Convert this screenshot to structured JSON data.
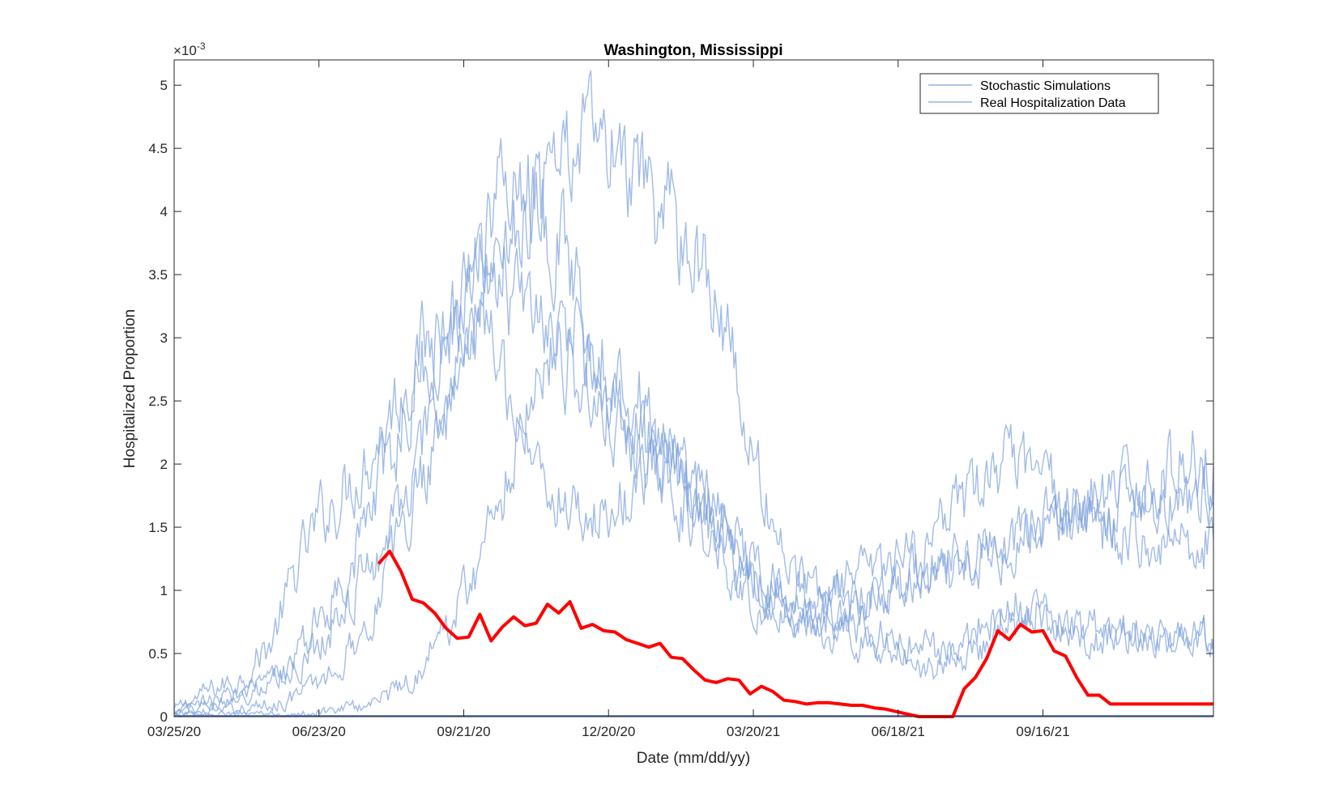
{
  "chart_data": {
    "type": "line",
    "title": "Washington, Mississippi",
    "xlabel": "Date (mm/dd/yy)",
    "ylabel": "Hospitalized Proportion",
    "y_exponent_label": "×10",
    "y_exponent_power": "-3",
    "x_start_date": "2020-03-25",
    "x_end_date": "2021-12-31",
    "xticks": [
      "03/25/20",
      "06/23/20",
      "09/21/20",
      "12/20/20",
      "03/20/21",
      "06/18/21",
      "09/16/21"
    ],
    "ylim": [
      0,
      5.2
    ],
    "yticks": [
      "0",
      "0.5",
      "1",
      "1.5",
      "2",
      "2.5",
      "3",
      "3.5",
      "4",
      "4.5",
      "5"
    ],
    "grid": false,
    "legend_position": "top-right",
    "legend": [
      "Stochastic Simulations",
      "Real Hospitalization Data"
    ],
    "colors": {
      "simulation": "#7a9fdc",
      "real": "#ff0000",
      "axis": "#262626",
      "baseline": "#3a64b0"
    },
    "simulations": [
      {
        "x": [
          "2020-03-25",
          "2020-04-15",
          "2020-05-05",
          "2020-05-25",
          "2020-06-10",
          "2020-06-25",
          "2020-07-10",
          "2020-07-25",
          "2020-08-10",
          "2020-08-25",
          "2020-09-10",
          "2020-09-25",
          "2020-10-10",
          "2020-10-25",
          "2020-11-05",
          "2020-11-20",
          "2020-12-05",
          "2020-12-20",
          "2021-01-05",
          "2021-01-20",
          "2021-02-05",
          "2021-02-20",
          "2021-03-05",
          "2021-03-20",
          "2021-04-05",
          "2021-04-20",
          "2021-05-10",
          "2021-05-30",
          "2021-06-18",
          "2021-07-10",
          "2021-07-30",
          "2021-08-20",
          "2021-09-10",
          "2021-09-30",
          "2021-10-20",
          "2021-11-10",
          "2021-11-30",
          "2021-12-20",
          "2021-12-31"
        ],
        "y": [
          0.05,
          0.2,
          0.3,
          0.6,
          1.2,
          1.6,
          1.8,
          2.1,
          2.5,
          2.9,
          3.1,
          3.3,
          3.4,
          3.3,
          3.1,
          2.9,
          2.6,
          2.3,
          2.1,
          1.9,
          1.7,
          1.5,
          1.3,
          1.1,
          0.95,
          0.9,
          0.9,
          0.95,
          1.0,
          1.05,
          1.1,
          1.3,
          1.5,
          1.6,
          1.7,
          1.8,
          1.9,
          2.1,
          2.0
        ]
      },
      {
        "x": [
          "2020-03-25",
          "2020-04-20",
          "2020-05-15",
          "2020-06-05",
          "2020-06-25",
          "2020-07-15",
          "2020-08-05",
          "2020-08-25",
          "2020-09-15",
          "2020-10-01",
          "2020-10-15",
          "2020-10-30",
          "2020-11-10",
          "2020-11-25",
          "2020-12-10",
          "2020-12-25",
          "2021-01-10",
          "2021-01-25",
          "2021-02-10",
          "2021-02-25",
          "2021-03-10",
          "2021-03-25",
          "2021-04-15",
          "2021-05-05",
          "2021-05-25",
          "2021-06-18",
          "2021-07-10",
          "2021-08-01",
          "2021-08-20",
          "2021-09-10",
          "2021-09-30",
          "2021-10-20",
          "2021-11-10",
          "2021-12-01",
          "2021-12-31"
        ],
        "y": [
          0.02,
          0.1,
          0.2,
          0.4,
          0.8,
          1.3,
          2.0,
          2.7,
          3.2,
          3.8,
          4.2,
          4.3,
          4.0,
          3.6,
          3.1,
          2.7,
          2.5,
          2.1,
          1.8,
          1.6,
          1.4,
          1.1,
          1.0,
          1.0,
          1.1,
          1.2,
          1.4,
          1.7,
          2.0,
          1.9,
          1.7,
          1.5,
          1.4,
          1.4,
          1.4
        ]
      },
      {
        "x": [
          "2020-03-25",
          "2020-04-30",
          "2020-05-25",
          "2020-06-15",
          "2020-07-05",
          "2020-07-25",
          "2020-08-15",
          "2020-09-05",
          "2020-09-25",
          "2020-10-10",
          "2020-10-25",
          "2020-11-10",
          "2020-11-25",
          "2020-12-10",
          "2020-12-25",
          "2021-01-10",
          "2021-01-25",
          "2021-02-10",
          "2021-02-25",
          "2021-03-10",
          "2021-03-25",
          "2021-04-15",
          "2021-05-05",
          "2021-05-25",
          "2021-06-18",
          "2021-07-10",
          "2021-08-01",
          "2021-08-20",
          "2021-09-10",
          "2021-09-30",
          "2021-10-20",
          "2021-11-10",
          "2021-12-01",
          "2021-12-31"
        ],
        "y": [
          0.02,
          0.05,
          0.1,
          0.2,
          0.4,
          0.8,
          1.5,
          2.3,
          3.0,
          3.6,
          3.9,
          4.3,
          4.5,
          4.6,
          4.4,
          4.1,
          4.0,
          3.7,
          3.4,
          2.6,
          1.8,
          1.1,
          0.8,
          0.7,
          0.6,
          0.5,
          0.5,
          0.7,
          0.8,
          0.7,
          0.6,
          0.6,
          0.6,
          0.6
        ]
      },
      {
        "x": [
          "2020-03-25",
          "2020-05-01",
          "2020-06-01",
          "2020-07-01",
          "2020-07-25",
          "2020-08-20",
          "2020-09-10",
          "2020-09-30",
          "2020-10-15",
          "2020-10-30",
          "2020-11-10",
          "2020-11-25",
          "2020-12-10",
          "2020-12-25",
          "2021-01-10",
          "2021-01-25",
          "2021-02-10",
          "2021-02-25",
          "2021-03-10",
          "2021-03-25",
          "2021-04-15",
          "2021-05-05",
          "2021-05-25",
          "2021-06-18",
          "2021-07-10",
          "2021-07-25",
          "2021-08-15",
          "2021-09-05",
          "2021-09-25",
          "2021-10-15",
          "2021-11-05",
          "2021-11-25",
          "2021-12-15",
          "2021-12-31"
        ],
        "y": [
          0.01,
          0.02,
          0.02,
          0.05,
          0.1,
          0.3,
          0.7,
          1.2,
          1.8,
          2.5,
          2.9,
          3.1,
          2.8,
          2.4,
          2.2,
          2.0,
          1.8,
          1.6,
          1.3,
          1.1,
          0.9,
          0.8,
          0.6,
          0.5,
          0.4,
          0.6,
          0.8,
          0.9,
          0.8,
          0.7,
          0.7,
          0.6,
          0.6,
          0.6
        ]
      },
      {
        "x": [
          "2020-03-25",
          "2020-04-25",
          "2020-05-20",
          "2020-06-10",
          "2020-06-30",
          "2020-07-20",
          "2020-08-10",
          "2020-08-30",
          "2020-09-20",
          "2020-10-05",
          "2020-10-20",
          "2020-11-05",
          "2020-11-20",
          "2020-12-05",
          "2020-12-20",
          "2021-01-05",
          "2021-01-20",
          "2021-02-05",
          "2021-02-20",
          "2021-03-05",
          "2021-03-20",
          "2021-04-10",
          "2021-05-01",
          "2021-05-25",
          "2021-06-18",
          "2021-07-10",
          "2021-08-01",
          "2021-08-25",
          "2021-09-15",
          "2021-10-05",
          "2021-10-25",
          "2021-11-15",
          "2021-12-05",
          "2021-12-31"
        ],
        "y": [
          0.03,
          0.15,
          0.25,
          0.4,
          0.7,
          1.1,
          1.6,
          2.2,
          2.8,
          3.1,
          2.6,
          2.0,
          1.7,
          1.6,
          1.6,
          1.8,
          2.1,
          1.9,
          1.5,
          1.2,
          0.9,
          0.8,
          0.7,
          0.8,
          1.0,
          1.2,
          1.3,
          1.4,
          1.5,
          1.5,
          1.6,
          1.7,
          1.8,
          1.7
        ]
      }
    ],
    "real": {
      "x": [
        "2020-07-30",
        "2020-08-06",
        "2020-08-13",
        "2020-08-20",
        "2020-08-27",
        "2020-09-03",
        "2020-09-10",
        "2020-09-17",
        "2020-09-24",
        "2020-10-01",
        "2020-10-08",
        "2020-10-15",
        "2020-10-22",
        "2020-10-29",
        "2020-11-05",
        "2020-11-12",
        "2020-11-19",
        "2020-11-26",
        "2020-12-03",
        "2020-12-10",
        "2020-12-17",
        "2020-12-24",
        "2020-12-31",
        "2021-01-07",
        "2021-01-14",
        "2021-01-21",
        "2021-01-28",
        "2021-02-04",
        "2021-02-11",
        "2021-02-18",
        "2021-02-25",
        "2021-03-04",
        "2021-03-11",
        "2021-03-18",
        "2021-03-25",
        "2021-04-01",
        "2021-04-08",
        "2021-04-15",
        "2021-04-22",
        "2021-04-29",
        "2021-05-06",
        "2021-05-13",
        "2021-05-20",
        "2021-05-27",
        "2021-06-03",
        "2021-06-10",
        "2021-06-17",
        "2021-06-24",
        "2021-07-01",
        "2021-07-08",
        "2021-07-15",
        "2021-07-22",
        "2021-07-29",
        "2021-08-05",
        "2021-08-12",
        "2021-08-19",
        "2021-08-26",
        "2021-09-02",
        "2021-09-09",
        "2021-09-16",
        "2021-09-23",
        "2021-09-30",
        "2021-10-07",
        "2021-10-14",
        "2021-10-21",
        "2021-10-28",
        "2021-11-04",
        "2021-11-11",
        "2021-11-18",
        "2021-11-25",
        "2021-12-02",
        "2021-12-09",
        "2021-12-16",
        "2021-12-31"
      ],
      "y": [
        1.21,
        1.31,
        1.15,
        0.93,
        0.9,
        0.82,
        0.7,
        0.62,
        0.63,
        0.81,
        0.6,
        0.71,
        0.79,
        0.72,
        0.74,
        0.89,
        0.82,
        0.91,
        0.7,
        0.73,
        0.68,
        0.67,
        0.61,
        0.58,
        0.55,
        0.58,
        0.47,
        0.46,
        0.37,
        0.29,
        0.27,
        0.3,
        0.29,
        0.18,
        0.24,
        0.2,
        0.13,
        0.12,
        0.1,
        0.11,
        0.11,
        0.1,
        0.09,
        0.09,
        0.07,
        0.06,
        0.04,
        0.02,
        0.0,
        0.0,
        0.0,
        0.0,
        0.22,
        0.31,
        0.46,
        0.68,
        0.61,
        0.73,
        0.67,
        0.68,
        0.52,
        0.48,
        0.31,
        0.17,
        0.17,
        0.1,
        0.1,
        0.1,
        0.1,
        0.1,
        0.1,
        0.1,
        0.1,
        0.1
      ]
    }
  }
}
